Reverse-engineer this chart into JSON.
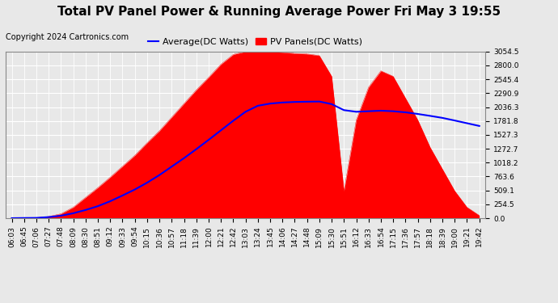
{
  "title": "Total PV Panel Power & Running Average Power Fri May 3 19:55",
  "copyright": "Copyright 2024 Cartronics.com",
  "legend_avg": "Average(DC Watts)",
  "legend_pv": "PV Panels(DC Watts)",
  "yticks": [
    0.0,
    254.5,
    509.1,
    763.6,
    1018.2,
    1272.7,
    1527.3,
    1781.8,
    2036.3,
    2290.9,
    2545.4,
    2800.0,
    3054.5
  ],
  "ylim": [
    0,
    3054.5
  ],
  "pv_color": "red",
  "avg_color": "blue",
  "bg_color": "#e8e8e8",
  "grid_color": "white",
  "title_fontsize": 11,
  "copyright_fontsize": 7,
  "legend_fontsize": 8,
  "tick_fontsize": 6.5,
  "times_labels": [
    "06:03",
    "06:45",
    "07:06",
    "07:27",
    "07:48",
    "08:09",
    "08:30",
    "08:51",
    "09:12",
    "09:33",
    "09:54",
    "10:15",
    "10:36",
    "10:57",
    "11:18",
    "11:39",
    "12:00",
    "12:21",
    "12:42",
    "13:03",
    "13:24",
    "13:45",
    "14:06",
    "14:27",
    "14:48",
    "15:09",
    "15:30",
    "15:51",
    "16:12",
    "16:33",
    "16:54",
    "17:15",
    "17:36",
    "17:57",
    "18:18",
    "18:39",
    "19:00",
    "19:21",
    "19:42"
  ],
  "pv_values": [
    0,
    5,
    8,
    30,
    80,
    200,
    380,
    560,
    750,
    950,
    1150,
    1380,
    1600,
    1850,
    2100,
    2350,
    2580,
    2820,
    3000,
    3054,
    3054,
    3050,
    3040,
    3020,
    3010,
    2980,
    2600,
    500,
    1800,
    2400,
    2700,
    2600,
    2200,
    1800,
    1300,
    900,
    500,
    200,
    50
  ],
  "avg_values": [
    0,
    3,
    5,
    20,
    45,
    90,
    150,
    220,
    310,
    415,
    525,
    650,
    790,
    945,
    1100,
    1265,
    1435,
    1610,
    1785,
    1950,
    2060,
    2100,
    2120,
    2130,
    2135,
    2138,
    2090,
    1980,
    1950,
    1960,
    1970,
    1960,
    1940,
    1910,
    1875,
    1838,
    1790,
    1740,
    1690
  ]
}
